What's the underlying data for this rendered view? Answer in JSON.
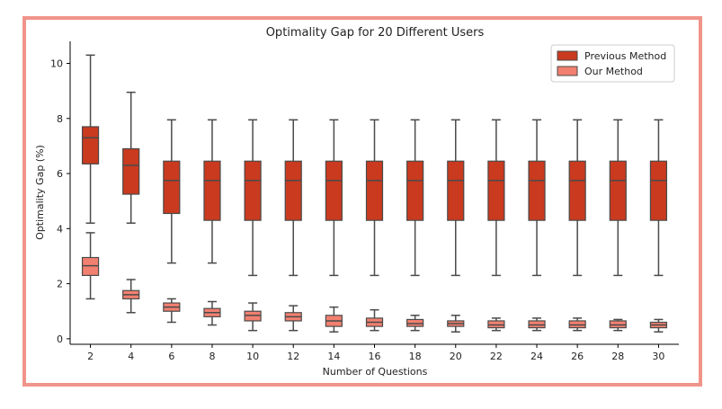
{
  "chart_data": {
    "type": "box",
    "title": "Optimality Gap for 20 Different Users",
    "xlabel": "Number of Questions",
    "ylabel": "Optimality Gap (%)",
    "ylim": [
      -0.2,
      10.8
    ],
    "yticks": [
      0,
      2,
      4,
      6,
      8,
      10
    ],
    "categories": [
      "2",
      "4",
      "6",
      "8",
      "10",
      "12",
      "14",
      "16",
      "18",
      "20",
      "22",
      "24",
      "26",
      "28",
      "30"
    ],
    "legend_position": "top-right",
    "grid": false,
    "series": [
      {
        "name": "Previous Method",
        "color": "#c93a1f",
        "boxes": [
          {
            "min": 4.2,
            "q1": 6.35,
            "median": 7.3,
            "q3": 7.7,
            "max": 10.3
          },
          {
            "min": 4.2,
            "q1": 5.25,
            "median": 6.3,
            "q3": 6.9,
            "max": 8.95
          },
          {
            "min": 2.75,
            "q1": 4.55,
            "median": 5.75,
            "q3": 6.45,
            "max": 7.95
          },
          {
            "min": 2.75,
            "q1": 4.3,
            "median": 5.75,
            "q3": 6.45,
            "max": 7.95
          },
          {
            "min": 2.3,
            "q1": 4.3,
            "median": 5.75,
            "q3": 6.45,
            "max": 7.95
          },
          {
            "min": 2.3,
            "q1": 4.3,
            "median": 5.75,
            "q3": 6.45,
            "max": 7.95
          },
          {
            "min": 2.3,
            "q1": 4.3,
            "median": 5.75,
            "q3": 6.45,
            "max": 7.95
          },
          {
            "min": 2.3,
            "q1": 4.3,
            "median": 5.75,
            "q3": 6.45,
            "max": 7.95
          },
          {
            "min": 2.3,
            "q1": 4.3,
            "median": 5.75,
            "q3": 6.45,
            "max": 7.95
          },
          {
            "min": 2.3,
            "q1": 4.3,
            "median": 5.75,
            "q3": 6.45,
            "max": 7.95
          },
          {
            "min": 2.3,
            "q1": 4.3,
            "median": 5.75,
            "q3": 6.45,
            "max": 7.95
          },
          {
            "min": 2.3,
            "q1": 4.3,
            "median": 5.75,
            "q3": 6.45,
            "max": 7.95
          },
          {
            "min": 2.3,
            "q1": 4.3,
            "median": 5.75,
            "q3": 6.45,
            "max": 7.95
          },
          {
            "min": 2.3,
            "q1": 4.3,
            "median": 5.75,
            "q3": 6.45,
            "max": 7.95
          },
          {
            "min": 2.3,
            "q1": 4.3,
            "median": 5.75,
            "q3": 6.45,
            "max": 7.95
          }
        ]
      },
      {
        "name": "Our Method",
        "color": "#f28070",
        "boxes": [
          {
            "min": 1.45,
            "q1": 2.3,
            "median": 2.65,
            "q3": 2.95,
            "max": 3.85
          },
          {
            "min": 0.95,
            "q1": 1.45,
            "median": 1.6,
            "q3": 1.75,
            "max": 2.15
          },
          {
            "min": 0.6,
            "q1": 1.0,
            "median": 1.15,
            "q3": 1.3,
            "max": 1.45
          },
          {
            "min": 0.5,
            "q1": 0.8,
            "median": 0.95,
            "q3": 1.1,
            "max": 1.35
          },
          {
            "min": 0.3,
            "q1": 0.65,
            "median": 0.85,
            "q3": 1.0,
            "max": 1.3
          },
          {
            "min": 0.3,
            "q1": 0.65,
            "median": 0.8,
            "q3": 0.95,
            "max": 1.2
          },
          {
            "min": 0.25,
            "q1": 0.45,
            "median": 0.65,
            "q3": 0.85,
            "max": 1.15
          },
          {
            "min": 0.3,
            "q1": 0.45,
            "median": 0.6,
            "q3": 0.75,
            "max": 1.05
          },
          {
            "min": 0.3,
            "q1": 0.45,
            "median": 0.55,
            "q3": 0.7,
            "max": 0.85
          },
          {
            "min": 0.25,
            "q1": 0.45,
            "median": 0.55,
            "q3": 0.65,
            "max": 0.85
          },
          {
            "min": 0.3,
            "q1": 0.4,
            "median": 0.5,
            "q3": 0.65,
            "max": 0.75
          },
          {
            "min": 0.3,
            "q1": 0.4,
            "median": 0.5,
            "q3": 0.65,
            "max": 0.75
          },
          {
            "min": 0.3,
            "q1": 0.4,
            "median": 0.5,
            "q3": 0.65,
            "max": 0.75
          },
          {
            "min": 0.3,
            "q1": 0.4,
            "median": 0.5,
            "q3": 0.65,
            "max": 0.7
          },
          {
            "min": 0.25,
            "q1": 0.4,
            "median": 0.5,
            "q3": 0.6,
            "max": 0.7
          }
        ]
      }
    ]
  }
}
